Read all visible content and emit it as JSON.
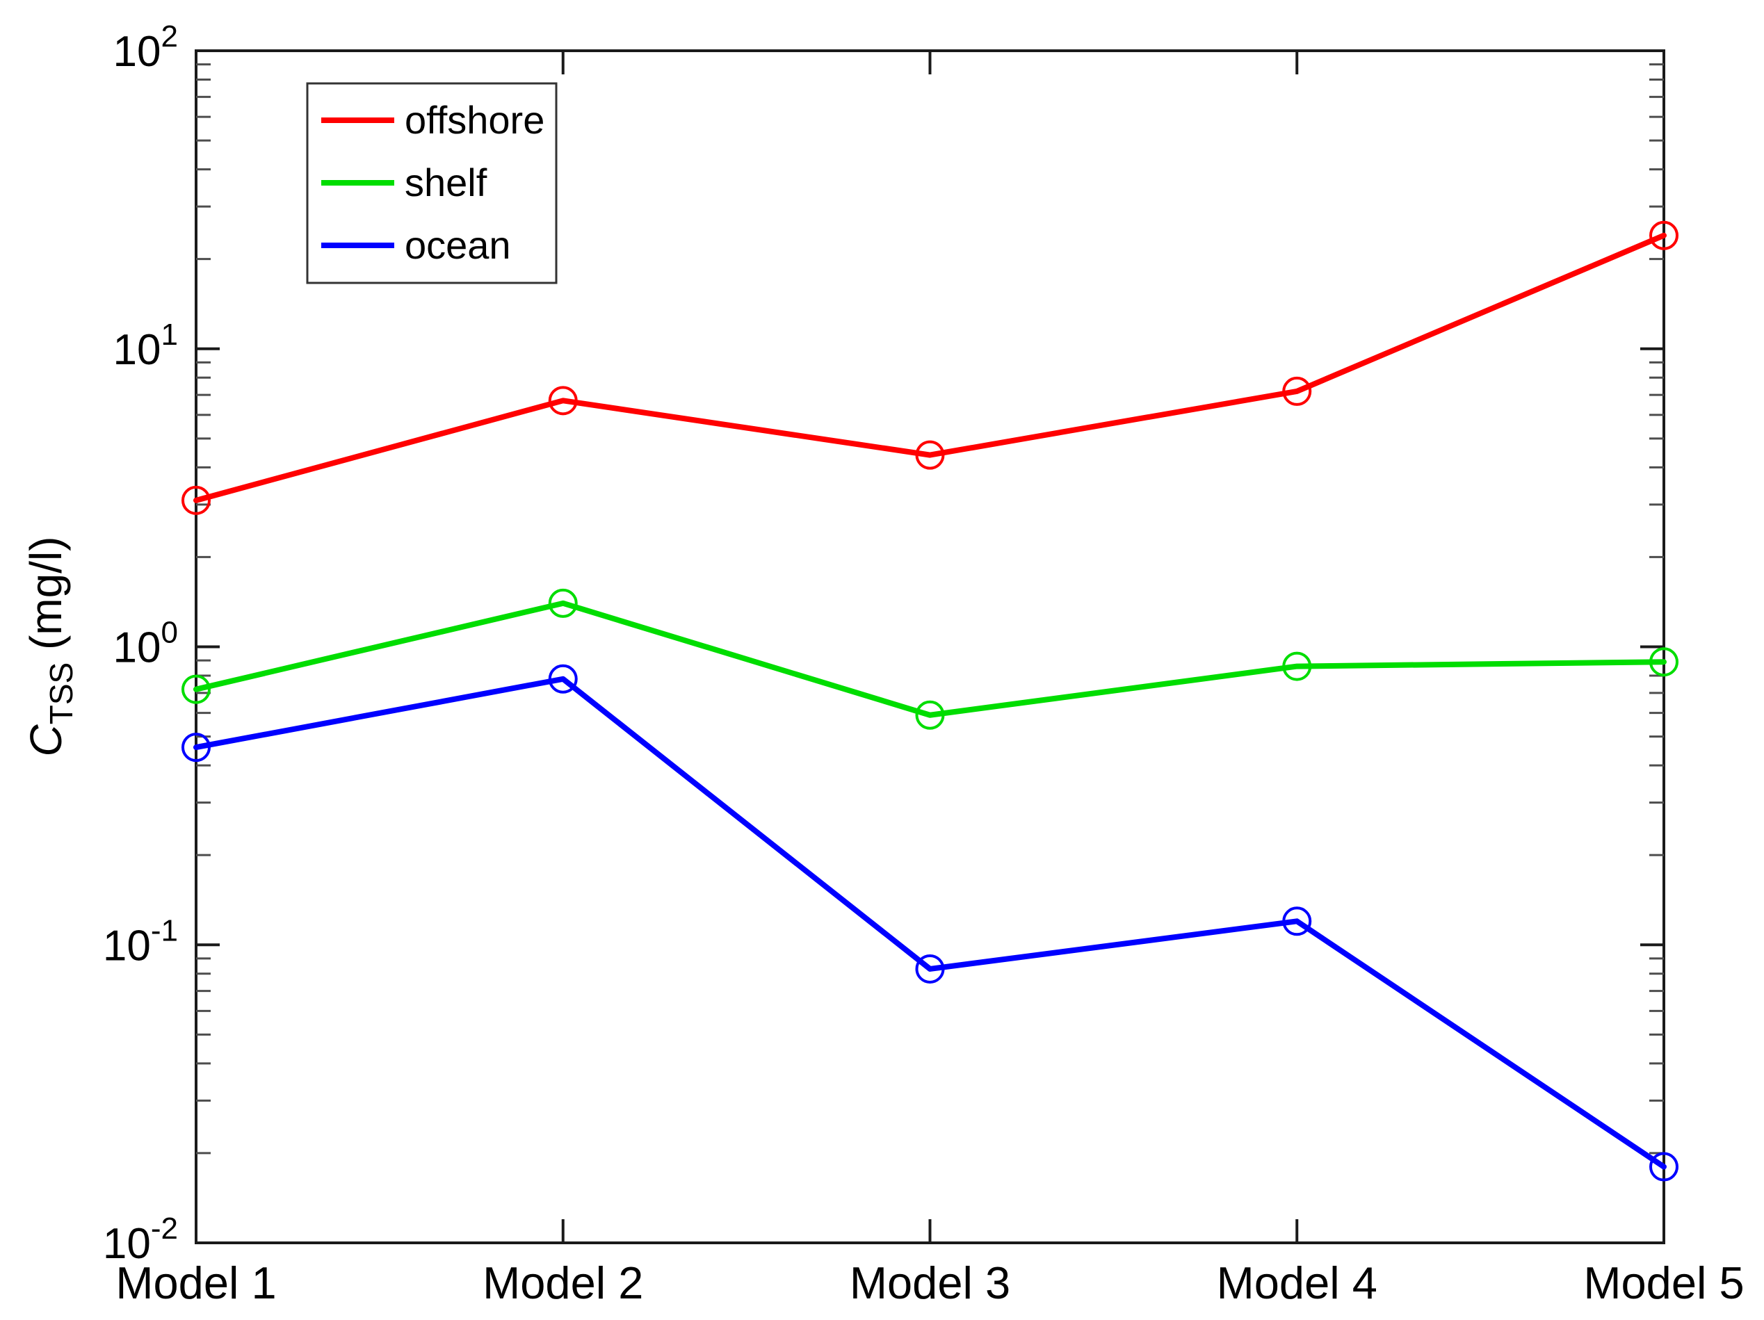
{
  "figure": {
    "background": "#ffffff",
    "axis_color": "#1a1a1a",
    "minor_tick_color": "#4d4d4d"
  },
  "chart_data": {
    "type": "line",
    "title": "",
    "xlabel": "",
    "ylabel": "C_TSS (mg/l)",
    "ylabel_parts": {
      "var": "C",
      "sub": "TSS",
      "unit": " (mg/l)"
    },
    "y_scale": "log",
    "ylim": [
      0.01,
      100
    ],
    "grid": false,
    "categories": [
      "Model 1",
      "Model 2",
      "Model 3",
      "Model 4",
      "Model 5"
    ],
    "y_tick_labels": [
      {
        "base": "10",
        "exp": "2",
        "value": 100
      },
      {
        "base": "10",
        "exp": "1",
        "value": 10
      },
      {
        "base": "10",
        "exp": "0",
        "value": 1
      },
      {
        "base": "10",
        "exp": "-1",
        "value": 0.1
      },
      {
        "base": "10",
        "exp": "-2",
        "value": 0.01
      }
    ],
    "y_major_tick_values": [
      10,
      1,
      0.1
    ],
    "marker": "o",
    "series": [
      {
        "name": "offshore",
        "color": "#ff0000",
        "values": [
          3.1,
          6.7,
          4.4,
          7.2,
          24
        ]
      },
      {
        "name": "shelf",
        "color": "#00dd00",
        "values": [
          0.72,
          1.4,
          0.59,
          0.86,
          0.89
        ]
      },
      {
        "name": "ocean",
        "color": "#0000ff",
        "values": [
          0.46,
          0.78,
          0.083,
          0.12,
          0.018
        ]
      }
    ],
    "legend": {
      "position": "top-left",
      "border_color": "#333333",
      "fill": "#ffffff"
    }
  }
}
